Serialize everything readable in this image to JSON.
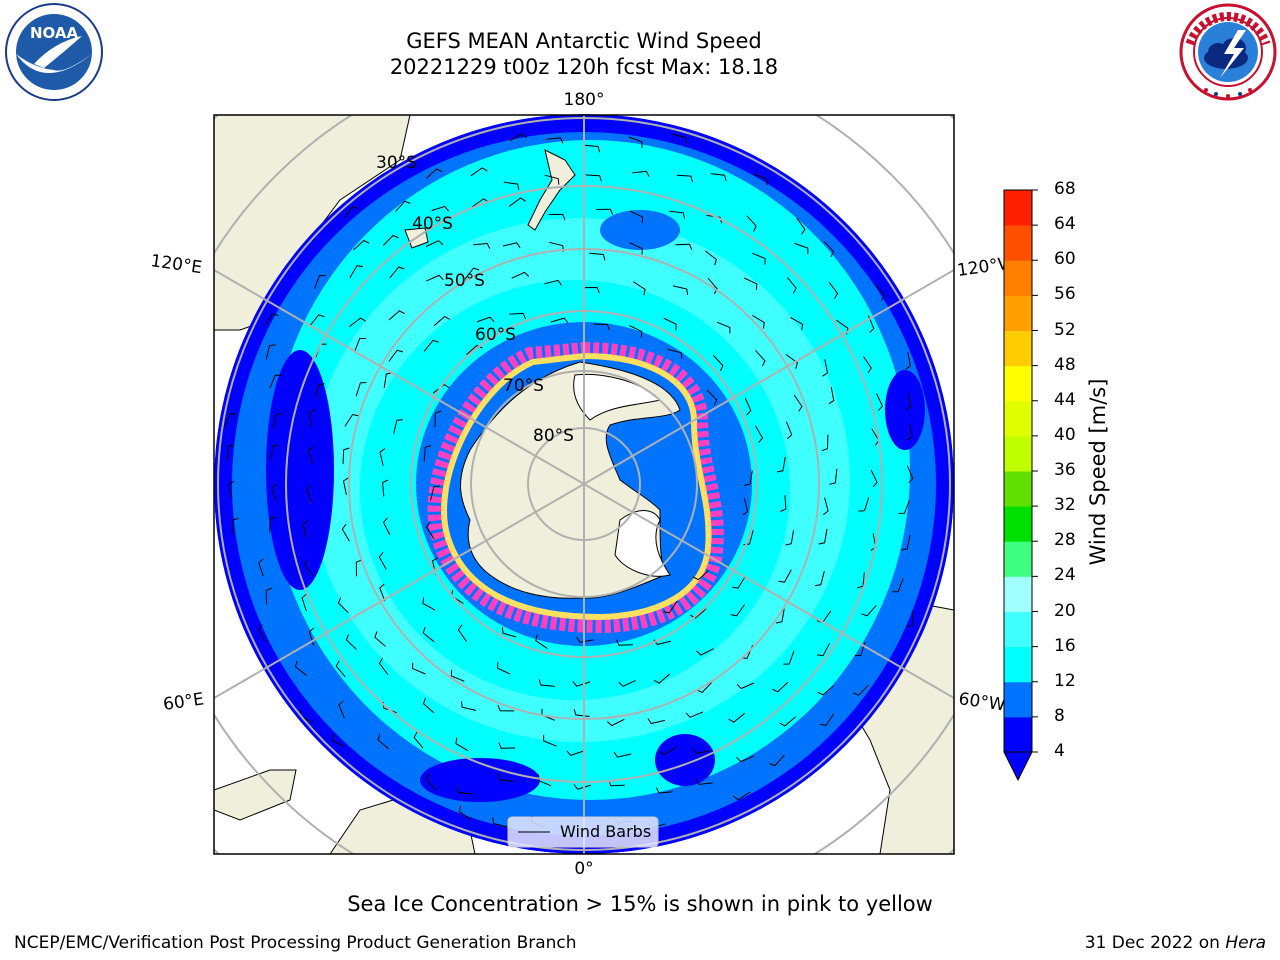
{
  "title_line1": "GEFS MEAN Antarctic Wind Speed",
  "title_line2": "20221229 t00z 120h fcst   Max: 18.18",
  "longitude_labels": {
    "top": "180°",
    "bottom": "0°",
    "left_upper": "120°E",
    "left_lower": "60°E",
    "right_upper": "120°W",
    "right_lower": "60°W"
  },
  "latitude_labels": [
    "30°S",
    "40°S",
    "50°S",
    "60°S",
    "70°S",
    "80°S"
  ],
  "legend": {
    "wind_barbs": "Wind Barbs"
  },
  "colorbar": {
    "label": "Wind Speed [m/s]",
    "ticks": [
      "4",
      "8",
      "12",
      "16",
      "20",
      "24",
      "28",
      "32",
      "36",
      "40",
      "44",
      "48",
      "52",
      "56",
      "60",
      "64",
      "68"
    ],
    "colors": [
      "#0000ff",
      "#0074ff",
      "#00ffff",
      "#40ffff",
      "#a0ffff",
      "#40ff80",
      "#00e000",
      "#60e000",
      "#c0ff00",
      "#e0ff00",
      "#ffff00",
      "#ffcc00",
      "#ffa000",
      "#ff8000",
      "#ff5000",
      "#ff2000"
    ],
    "under_color": "#0000ff"
  },
  "logos": {
    "noaa": "NOAA"
  },
  "caption": "Sea Ice Concentration > 15% is shown in pink to yellow",
  "credit": "NCEP/EMC/Verification Post Processing Product Generation Branch",
  "date_prefix": "31 Dec 2022 on ",
  "date_machine": "Hera"
}
